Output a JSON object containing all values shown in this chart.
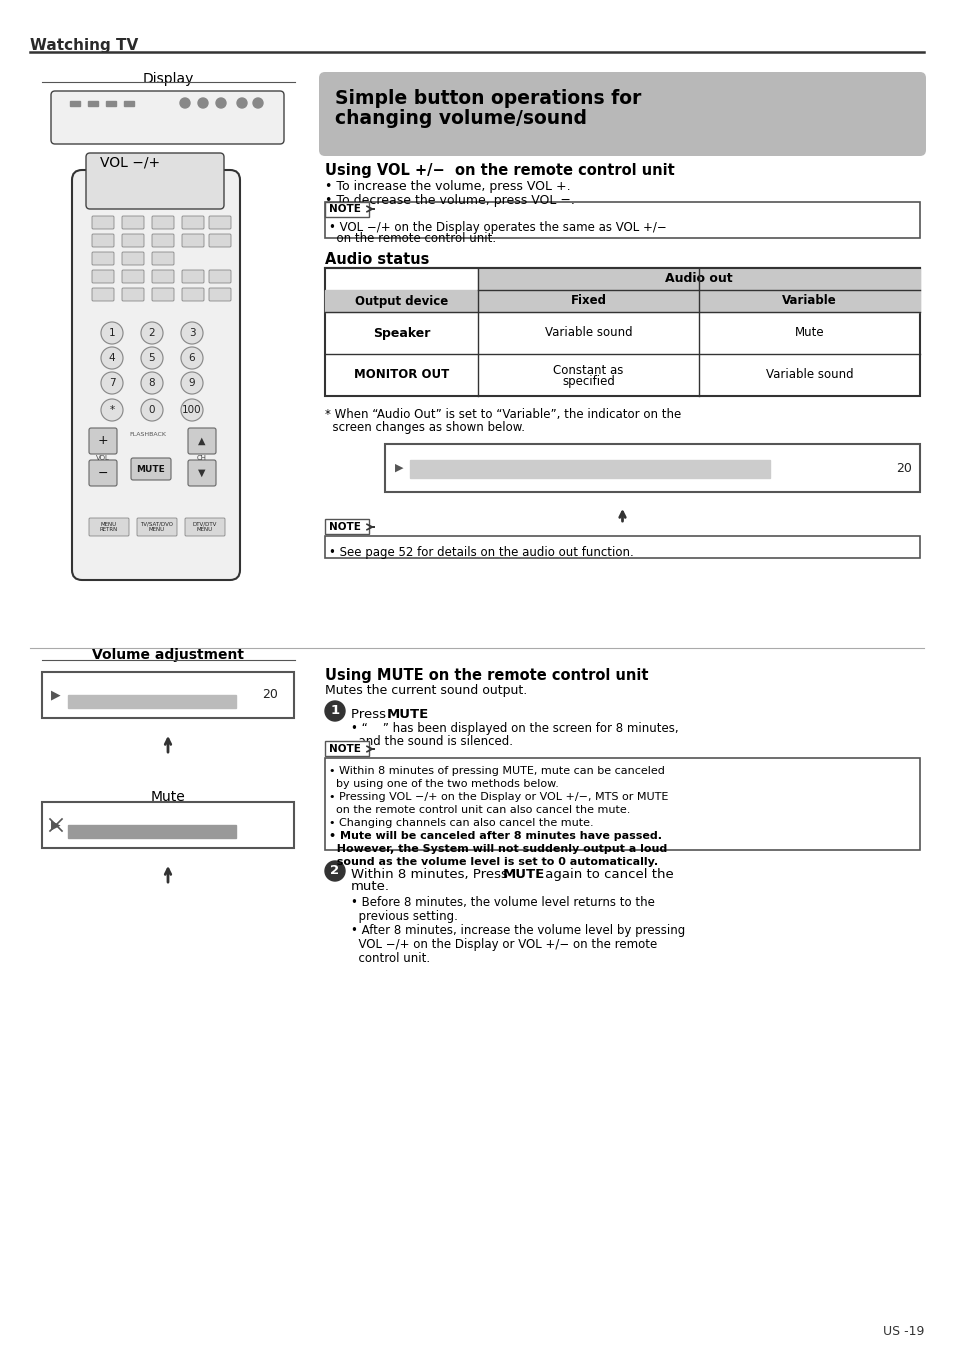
{
  "page_bg": "#ffffff",
  "title_bar_text": "Watching TV",
  "separator_color": "#333333",
  "header_box_text_line1": "Simple button operations for",
  "header_box_text_line2": "changing volume/sound",
  "header_box_bg": "#b8b8b8",
  "section1_title": "Using VOL +/−  on the remote control unit",
  "section1_bullet1": "• To increase the volume, press VOL +.",
  "section1_bullet2": "• To decrease the volume, press VOL −.",
  "note1_text_line1": "• VOL −/+ on the Display operates the same as VOL +/−",
  "note1_text_line2": "  on the remote control unit.",
  "audio_status_title": "Audio status",
  "table_header1": "Output device",
  "table_header2": "Audio out",
  "table_subheader1": "Fixed",
  "table_subheader2": "Variable",
  "table_row1_col0": "Speaker",
  "table_row1_col1": "Variable sound",
  "table_row1_col2": "Mute",
  "table_row2_col0": "MONITOR OUT",
  "table_row2_col1a": "Constant as",
  "table_row2_col1b": "specified",
  "table_row2_col2": "Variable sound",
  "table_header_bg": "#c8c8c8",
  "table_border_color": "#333333",
  "asterisk_note_line1": "* When “Audio Out” is set to “Variable”, the indicator on the",
  "asterisk_note_line2": "  screen changes as shown below.",
  "note2_text": "• See page 52 for details on the audio out function.",
  "left_display_label": "Display",
  "left_vol_label": "VOL −/+",
  "left_vol_adj_label": "Volume adjustment",
  "left_mute_label": "Mute",
  "section2_title": "Using MUTE on the remote control unit",
  "section2_subtitle": "Mutes the current sound output.",
  "step1_num": "1",
  "step1_pre": "Press ",
  "step1_bold": "MUTE",
  "step1_post": ".",
  "step1_bullet_line1": "• “    ” has been displayed on the screen for 8 minutes,",
  "step1_bullet_line2": "  and the sound is silenced.",
  "note3_line1": "• Within 8 minutes of pressing MUTE, mute can be canceled",
  "note3_line2": "  by using one of the two methods below.",
  "note3_line3": "• Pressing VOL −/+ on the Display or VOL +/−, MTS or MUTE",
  "note3_line4": "  on the remote control unit can also cancel the mute.",
  "note3_line5": "• Changing channels can also cancel the mute.",
  "note3_bold1": "• Mute will be canceled after 8 minutes have passed.",
  "note3_bold2": "  However, the System will not suddenly output a loud",
  "note3_bold3": "  sound as the volume level is set to 0 automatically.",
  "step2_num": "2",
  "step2_pre": "Within 8 minutes, Press ",
  "step2_bold": "MUTE",
  "step2_post": " again to cancel the",
  "step2_line2": "mute.",
  "step2_b1l1": "• Before 8 minutes, the volume level returns to the",
  "step2_b1l2": "  previous setting.",
  "step2_b2l1": "• After 8 minutes, increase the volume level by pressing",
  "step2_b2l2": "  VOL −/+ on the Display or VOL +/− on the remote",
  "step2_b2l3": "  control unit.",
  "page_num": "US -19"
}
